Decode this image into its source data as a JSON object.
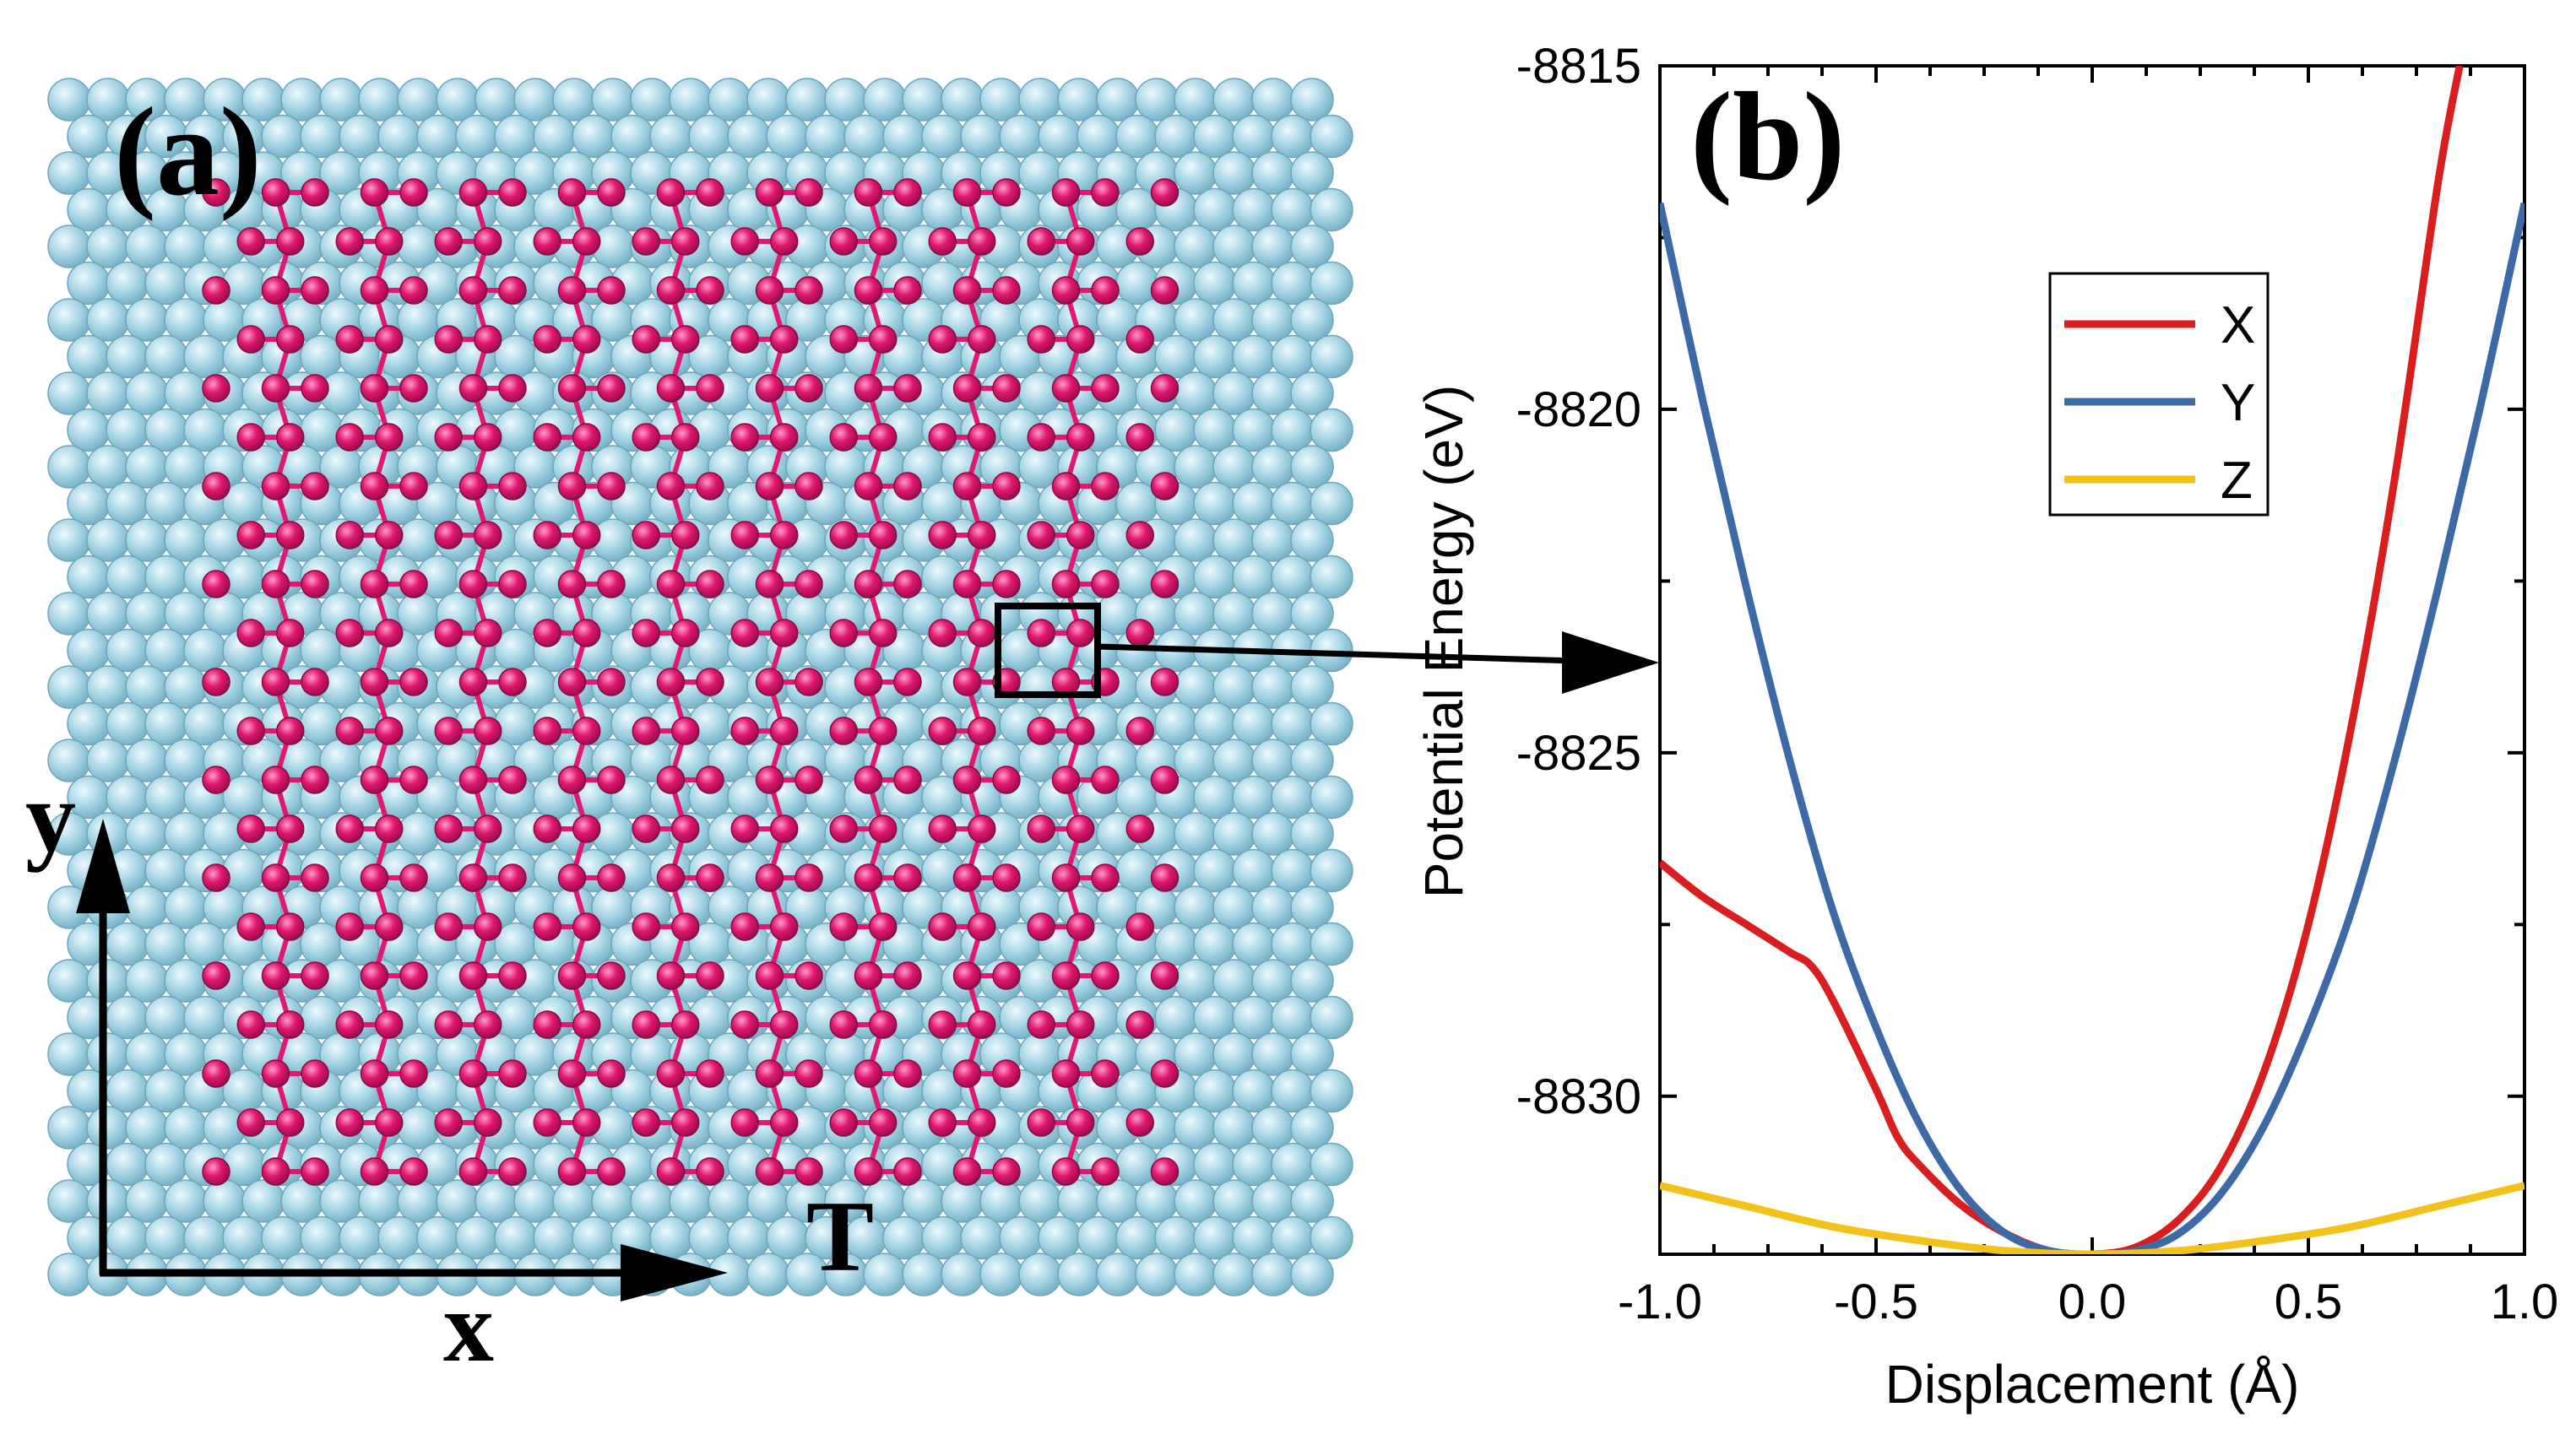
{
  "panel_a": {
    "label": "(a)",
    "axis_y_label": "y",
    "axis_x_label": "x",
    "corner_label": "T",
    "colors": {
      "substrate": "#9fd0e0",
      "substrate_highlight": "#e8f6fb",
      "lattice": "#e0186f",
      "lattice_highlight": "#ffb3d2",
      "axes": "#000000"
    }
  },
  "panel_b": {
    "label": "(b)"
  },
  "chart_data": {
    "type": "line",
    "title": "",
    "xlabel": "Displacement (Å)",
    "ylabel": "Potential Energy (eV)",
    "xlim": [
      -1.0,
      1.0
    ],
    "ylim": [
      -8832.3,
      -8815.0
    ],
    "xticks": [
      -1.0,
      -0.5,
      0.0,
      0.5,
      1.0
    ],
    "xtick_labels": [
      "-1.0",
      "-0.5",
      "0.0",
      "0.5",
      "1.0"
    ],
    "yticks": [
      -8815,
      -8820,
      -8825,
      -8830
    ],
    "ytick_labels": [
      "-8815",
      "-8820",
      "-8825",
      "-8830"
    ],
    "grid": false,
    "legend_position": "top-right",
    "series": [
      {
        "name": "X",
        "color": "#d81e1e",
        "x": [
          -1.0,
          -0.9,
          -0.8,
          -0.7,
          -0.65,
          -0.6,
          -0.5,
          -0.45,
          -0.4,
          -0.3,
          -0.2,
          -0.1,
          0.0,
          0.1,
          0.2,
          0.3,
          0.4,
          0.5,
          0.6,
          0.7,
          0.8,
          0.85
        ],
        "y": [
          -8826.6,
          -8827.1,
          -8827.5,
          -8827.9,
          -8828.1,
          -8828.6,
          -8829.9,
          -8830.6,
          -8831.0,
          -8831.6,
          -8832.0,
          -8832.25,
          -8832.3,
          -8832.2,
          -8831.8,
          -8831.0,
          -8829.6,
          -8827.5,
          -8824.6,
          -8821.0,
          -8816.7,
          -8815.0
        ]
      },
      {
        "name": "Y",
        "color": "#3d6aa6",
        "x": [
          -1.0,
          -0.9,
          -0.8,
          -0.7,
          -0.6,
          -0.5,
          -0.4,
          -0.3,
          -0.2,
          -0.1,
          0.0,
          0.1,
          0.2,
          0.3,
          0.4,
          0.5,
          0.6,
          0.7,
          0.8,
          0.9,
          1.0
        ],
        "y": [
          -8817.0,
          -8819.9,
          -8822.6,
          -8825.1,
          -8827.3,
          -8829.0,
          -8830.4,
          -8831.4,
          -8832.0,
          -8832.25,
          -8832.3,
          -8832.25,
          -8832.0,
          -8831.4,
          -8830.4,
          -8829.0,
          -8827.3,
          -8825.1,
          -8822.6,
          -8819.9,
          -8817.0
        ]
      },
      {
        "name": "Z",
        "color": "#f2c21b",
        "x": [
          -1.0,
          -0.8,
          -0.6,
          -0.4,
          -0.2,
          0.0,
          0.2,
          0.4,
          0.6,
          0.8,
          1.0
        ],
        "y": [
          -8831.3,
          -8831.6,
          -8831.9,
          -8832.1,
          -8832.25,
          -8832.3,
          -8832.25,
          -8832.1,
          -8831.9,
          -8831.6,
          -8831.3
        ]
      }
    ]
  }
}
